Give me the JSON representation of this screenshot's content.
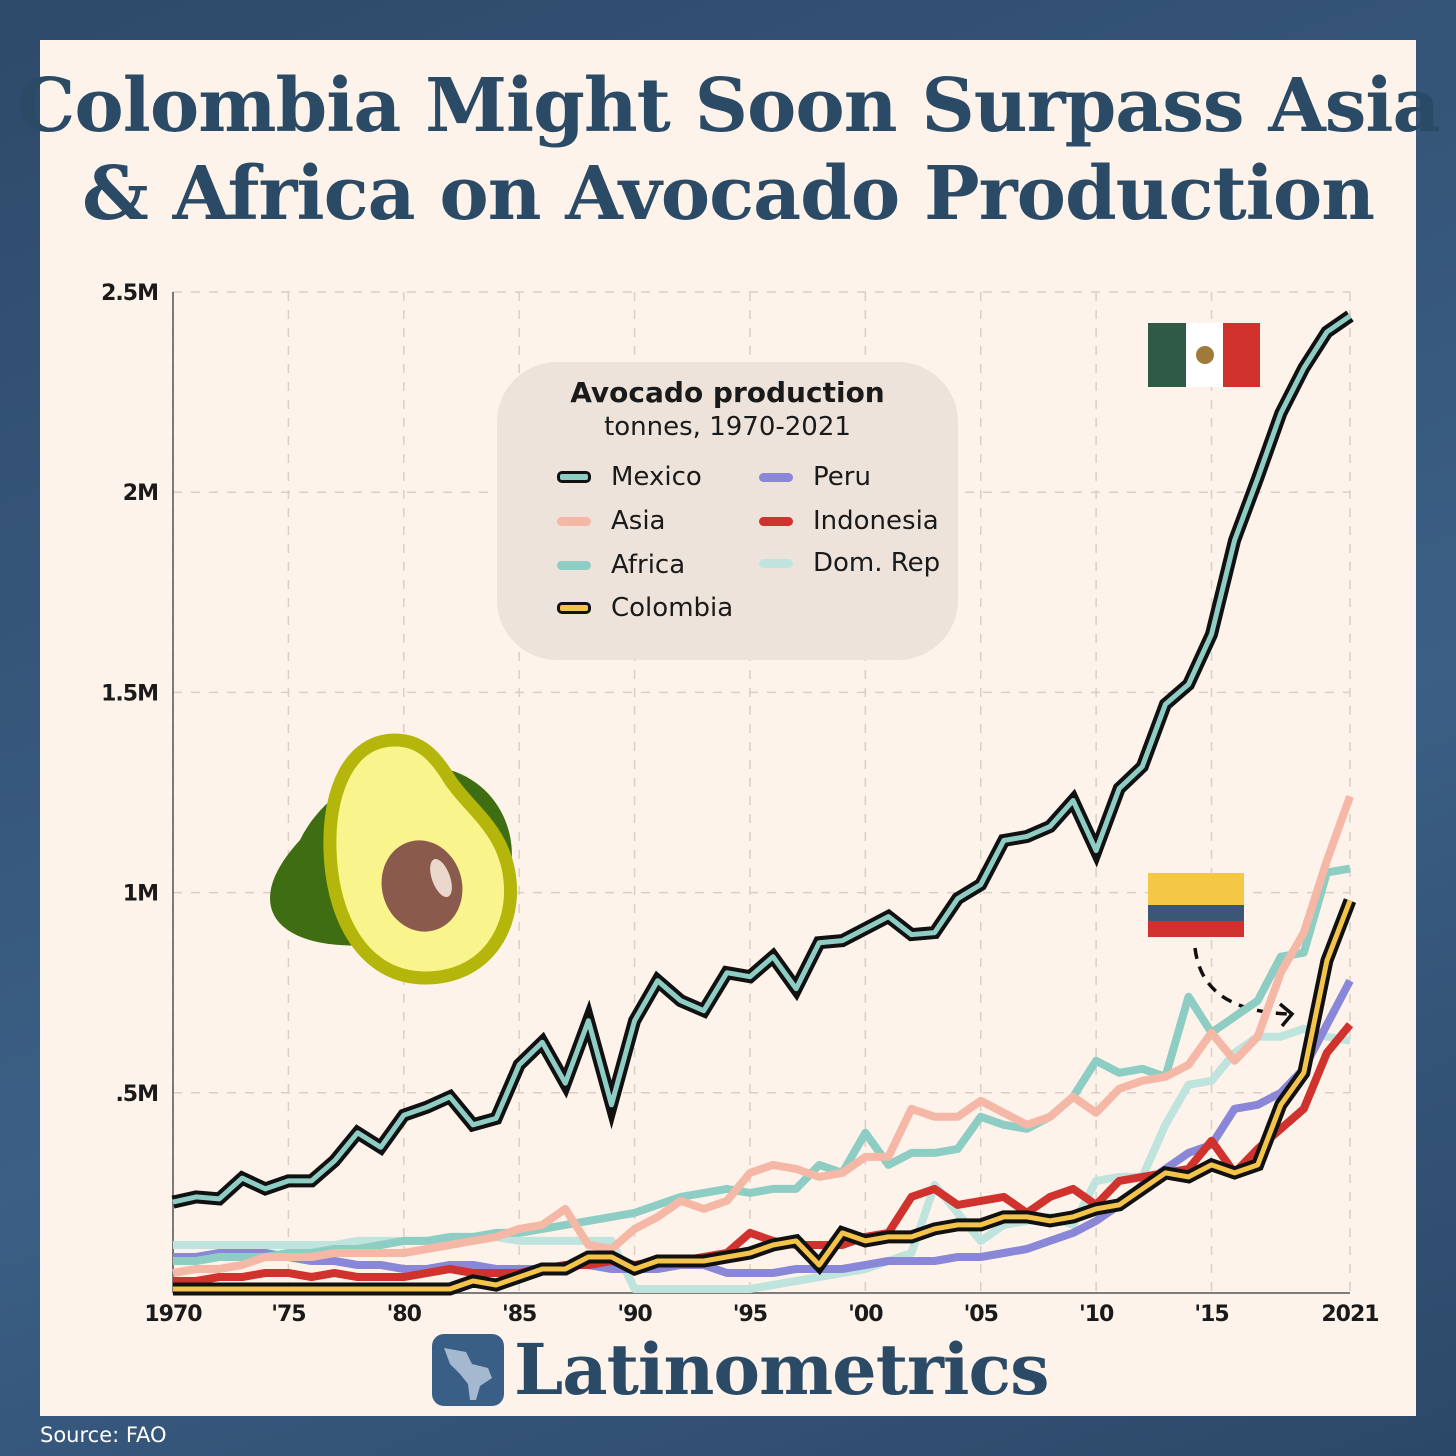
{
  "title_line1": "Colombia Might Soon Surpass Asia",
  "title_line2": "& Africa on Avocado Production",
  "source": "Source: FAO",
  "brand": "Latinometrics",
  "legend": {
    "title": "Avocado production",
    "subtitle": "tonnes, 1970-2021"
  },
  "colors": {
    "background": "#fdf3ea",
    "title": "#2b4a66",
    "mexico": "#8ecdc4",
    "asia": "#f5b8a6",
    "africa": "#8ecdc4",
    "colombia": "#f3c34a",
    "peru": "#8a86d8",
    "indonesia": "#d0322d",
    "domrep": "#bfe3dd"
  },
  "chart_data": {
    "type": "line",
    "title": "Avocado production",
    "subtitle": "tonnes, 1970-2021",
    "x_range": [
      1970,
      2021
    ],
    "ylim": [
      0,
      2500000
    ],
    "grid": true,
    "legend_position": "top-center",
    "x_ticks": [
      1970,
      1975,
      1980,
      1985,
      1990,
      1995,
      2000,
      2005,
      2010,
      2015,
      2021
    ],
    "x_tick_labels": [
      "1970",
      "'75",
      "'80",
      "'85",
      "'90",
      "'95",
      "'00",
      "'05",
      "'10",
      "'15",
      "2021"
    ],
    "y_ticks": [
      500000,
      1000000,
      1500000,
      2000000,
      2500000
    ],
    "y_tick_labels": [
      ".5M",
      "1M",
      "1.5M",
      "2M",
      "2.5M"
    ],
    "series": [
      {
        "name": "Dom. Rep",
        "key": "domrep",
        "values_millions": [
          0.12,
          0.12,
          0.12,
          0.12,
          0.12,
          0.12,
          0.12,
          0.12,
          0.13,
          0.13,
          0.13,
          0.13,
          0.13,
          0.13,
          0.14,
          0.13,
          0.13,
          0.13,
          0.13,
          0.13,
          0.01,
          0.01,
          0.01,
          0.01,
          0.01,
          0.01,
          0.02,
          0.03,
          0.04,
          0.05,
          0.06,
          0.08,
          0.1,
          0.27,
          0.2,
          0.13,
          0.17,
          0.18,
          0.19,
          0.17,
          0.28,
          0.29,
          0.29,
          0.42,
          0.52,
          0.53,
          0.6,
          0.64,
          0.64,
          0.66,
          0.64,
          0.63
        ]
      },
      {
        "name": "Peru",
        "key": "peru",
        "values_millions": [
          0.09,
          0.09,
          0.1,
          0.1,
          0.1,
          0.09,
          0.08,
          0.08,
          0.07,
          0.07,
          0.06,
          0.06,
          0.07,
          0.07,
          0.06,
          0.06,
          0.06,
          0.07,
          0.07,
          0.06,
          0.06,
          0.06,
          0.07,
          0.07,
          0.05,
          0.05,
          0.05,
          0.06,
          0.06,
          0.06,
          0.07,
          0.08,
          0.08,
          0.08,
          0.09,
          0.09,
          0.1,
          0.11,
          0.13,
          0.15,
          0.18,
          0.22,
          0.27,
          0.31,
          0.35,
          0.37,
          0.46,
          0.47,
          0.5,
          0.56,
          0.67,
          0.78
        ]
      },
      {
        "name": "Indonesia",
        "key": "indonesia",
        "values_millions": [
          0.03,
          0.03,
          0.04,
          0.04,
          0.05,
          0.05,
          0.04,
          0.05,
          0.04,
          0.04,
          0.04,
          0.05,
          0.06,
          0.05,
          0.05,
          0.05,
          0.06,
          0.07,
          0.07,
          0.08,
          0.07,
          0.08,
          0.08,
          0.09,
          0.1,
          0.15,
          0.13,
          0.12,
          0.12,
          0.12,
          0.14,
          0.15,
          0.24,
          0.26,
          0.22,
          0.23,
          0.24,
          0.2,
          0.24,
          0.26,
          0.22,
          0.28,
          0.29,
          0.3,
          0.31,
          0.38,
          0.3,
          0.36,
          0.41,
          0.46,
          0.6,
          0.67
        ]
      },
      {
        "name": "Africa",
        "key": "africa",
        "values_millions": [
          0.08,
          0.08,
          0.09,
          0.09,
          0.09,
          0.1,
          0.1,
          0.11,
          0.11,
          0.12,
          0.13,
          0.13,
          0.14,
          0.14,
          0.15,
          0.15,
          0.16,
          0.17,
          0.18,
          0.19,
          0.2,
          0.22,
          0.24,
          0.25,
          0.26,
          0.25,
          0.26,
          0.26,
          0.32,
          0.3,
          0.4,
          0.32,
          0.35,
          0.35,
          0.36,
          0.44,
          0.42,
          0.41,
          0.44,
          0.49,
          0.58,
          0.55,
          0.56,
          0.54,
          0.74,
          0.65,
          0.69,
          0.73,
          0.84,
          0.85,
          1.05,
          1.06
        ]
      },
      {
        "name": "Asia",
        "key": "asia",
        "values_millions": [
          0.05,
          0.06,
          0.06,
          0.07,
          0.09,
          0.09,
          0.09,
          0.1,
          0.1,
          0.1,
          0.1,
          0.11,
          0.12,
          0.13,
          0.14,
          0.16,
          0.17,
          0.21,
          0.12,
          0.11,
          0.16,
          0.19,
          0.23,
          0.21,
          0.23,
          0.3,
          0.32,
          0.31,
          0.29,
          0.3,
          0.34,
          0.34,
          0.46,
          0.44,
          0.44,
          0.48,
          0.45,
          0.42,
          0.44,
          0.49,
          0.45,
          0.51,
          0.53,
          0.54,
          0.57,
          0.65,
          0.58,
          0.64,
          0.8,
          0.9,
          1.08,
          1.24
        ]
      },
      {
        "name": "Colombia",
        "key": "colombia",
        "outlined": true,
        "values_millions": [
          0.01,
          0.01,
          0.01,
          0.01,
          0.01,
          0.01,
          0.01,
          0.01,
          0.01,
          0.01,
          0.01,
          0.01,
          0.01,
          0.03,
          0.02,
          0.04,
          0.06,
          0.06,
          0.09,
          0.09,
          0.06,
          0.08,
          0.08,
          0.08,
          0.09,
          0.1,
          0.12,
          0.13,
          0.07,
          0.15,
          0.13,
          0.14,
          0.14,
          0.16,
          0.17,
          0.17,
          0.19,
          0.19,
          0.18,
          0.19,
          0.21,
          0.22,
          0.26,
          0.3,
          0.29,
          0.32,
          0.3,
          0.32,
          0.47,
          0.55,
          0.83,
          0.98
        ]
      },
      {
        "name": "Mexico",
        "key": "mexico",
        "outlined": true,
        "values_millions": [
          0.227,
          0.24,
          0.235,
          0.287,
          0.26,
          0.28,
          0.28,
          0.33,
          0.4,
          0.364,
          0.444,
          0.464,
          0.49,
          0.42,
          0.436,
          0.57,
          0.626,
          0.524,
          0.68,
          0.47,
          0.68,
          0.78,
          0.73,
          0.705,
          0.8,
          0.79,
          0.84,
          0.76,
          0.875,
          0.88,
          0.91,
          0.94,
          0.895,
          0.9,
          0.985,
          1.02,
          1.13,
          1.14,
          1.165,
          1.23,
          1.105,
          1.26,
          1.315,
          1.47,
          1.52,
          1.645,
          1.88,
          2.035,
          2.197,
          2.31,
          2.4,
          2.44
        ]
      }
    ]
  },
  "legend_items": [
    {
      "label": "Mexico",
      "key": "mexico",
      "outlined": true
    },
    {
      "label": "Asia",
      "key": "asia"
    },
    {
      "label": "Africa",
      "key": "africa"
    },
    {
      "label": "Colombia",
      "key": "colombia",
      "outlined": true
    },
    {
      "label": "Peru",
      "key": "peru"
    },
    {
      "label": "Indonesia",
      "key": "indonesia"
    },
    {
      "label": "Dom. Rep",
      "key": "domrep"
    }
  ],
  "icons": [
    "mexico-flag-icon",
    "colombia-flag-icon",
    "avocado-icon",
    "latin-america-map-icon",
    "dashed-arrow-icon"
  ]
}
